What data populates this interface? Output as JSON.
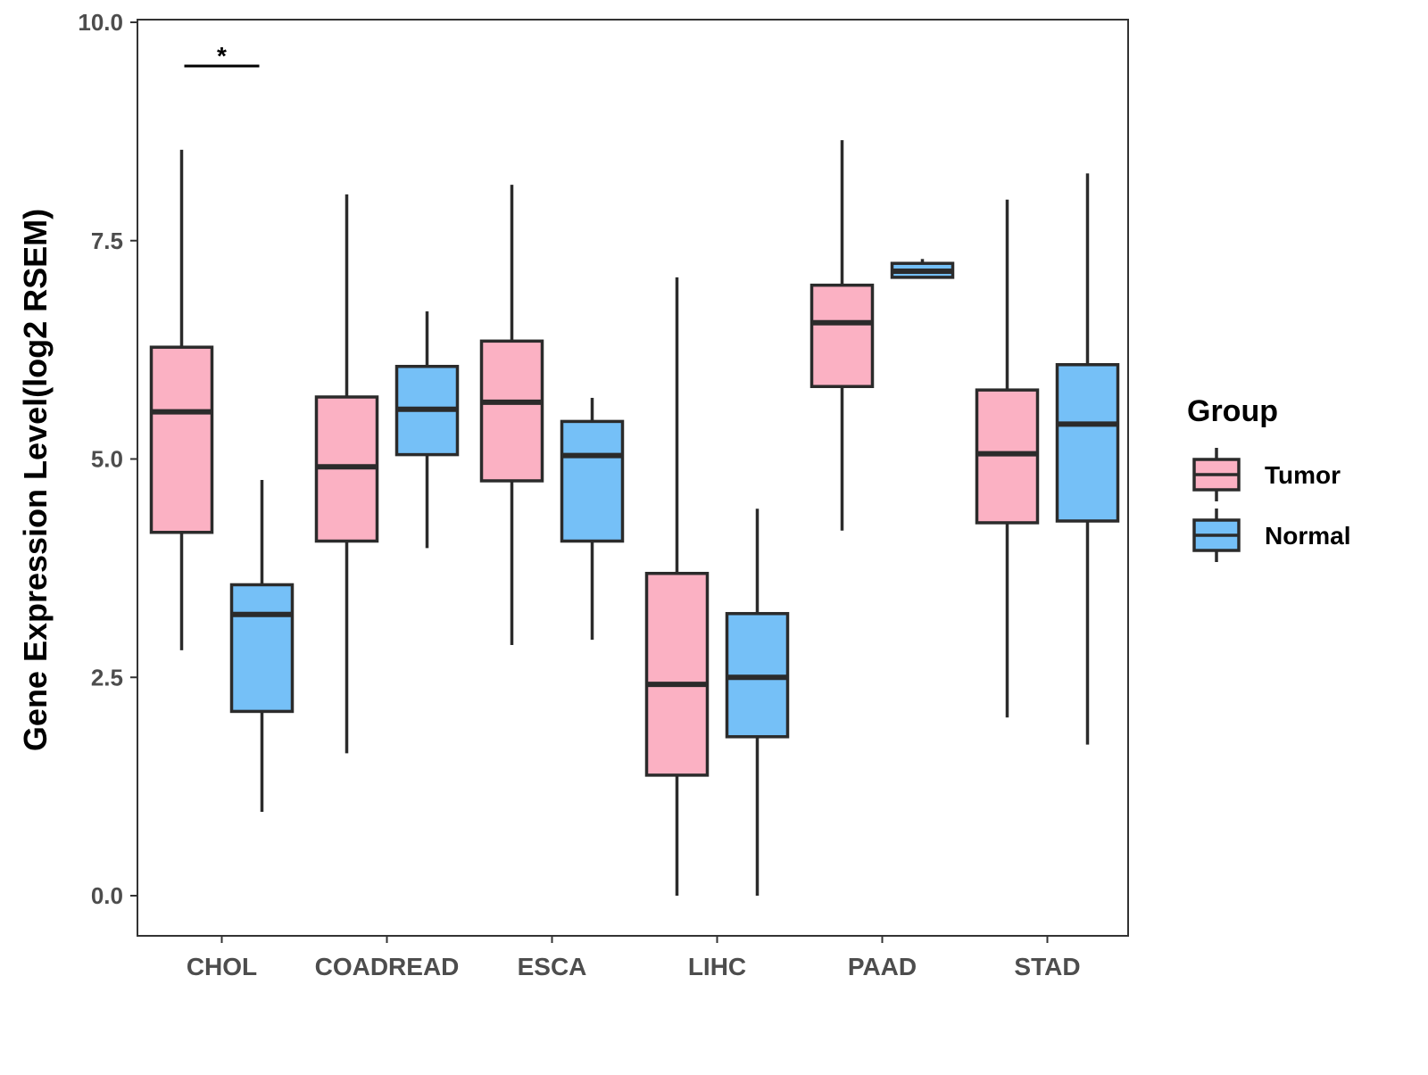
{
  "chart_data": {
    "type": "boxplot",
    "title": "",
    "xlabel": "",
    "ylabel": "Gene Expression Level(log2 RSEM)",
    "ylim": [
      -0.45,
      10.05
    ],
    "yticks": [
      "0.0",
      "2.5",
      "5.0",
      "7.5",
      "10.0"
    ],
    "ytick_values": [
      0,
      2.5,
      5,
      7.5,
      10
    ],
    "grid": false,
    "categories": [
      "CHOL",
      "COADREAD",
      "ESCA",
      "LIHC",
      "PAAD",
      "STAD"
    ],
    "legend": {
      "title": "Group",
      "placement": "right"
    },
    "series": [
      {
        "name": "Tumor",
        "color": "#FBB1C3",
        "boxes": [
          {
            "low": 2.81,
            "q1": 4.16,
            "median": 5.54,
            "q3": 6.28,
            "high": 8.54
          },
          {
            "low": 1.63,
            "q1": 4.06,
            "median": 4.91,
            "q3": 5.71,
            "high": 8.03
          },
          {
            "low": 2.87,
            "q1": 4.75,
            "median": 5.65,
            "q3": 6.35,
            "high": 8.14
          },
          {
            "low": 0.0,
            "q1": 1.38,
            "median": 2.42,
            "q3": 3.69,
            "high": 7.08
          },
          {
            "low": 4.18,
            "q1": 5.83,
            "median": 6.56,
            "q3": 6.99,
            "high": 8.65
          },
          {
            "low": 2.04,
            "q1": 4.27,
            "median": 5.06,
            "q3": 5.79,
            "high": 7.97
          }
        ]
      },
      {
        "name": "Normal",
        "color": "#75C0F7",
        "boxes": [
          {
            "low": 0.96,
            "q1": 2.11,
            "median": 3.22,
            "q3": 3.56,
            "high": 4.76
          },
          {
            "low": 3.98,
            "q1": 5.05,
            "median": 5.57,
            "q3": 6.06,
            "high": 6.69
          },
          {
            "low": 2.93,
            "q1": 4.06,
            "median": 5.04,
            "q3": 5.43,
            "high": 5.7
          },
          {
            "low": 0.0,
            "q1": 1.82,
            "median": 2.5,
            "q3": 3.23,
            "high": 4.43
          },
          {
            "low": 7.08,
            "q1": 7.08,
            "median": 7.15,
            "q3": 7.24,
            "high": 7.29
          },
          {
            "low": 1.73,
            "q1": 4.29,
            "median": 5.4,
            "q3": 6.08,
            "high": 8.27
          }
        ]
      }
    ],
    "annotations": [
      {
        "category": "CHOL",
        "text": "*",
        "y": 9.5
      }
    ]
  }
}
